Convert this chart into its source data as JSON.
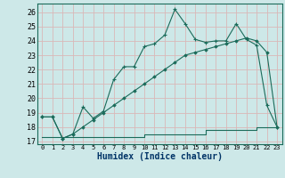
{
  "xlabel": "Humidex (Indice chaleur)",
  "background_color": "#cde8e8",
  "grid_color": "#b8d4d4",
  "line_color": "#1a6b5a",
  "xlim": [
    -0.5,
    23.5
  ],
  "ylim": [
    16.8,
    26.6
  ],
  "xticks": [
    0,
    1,
    2,
    3,
    4,
    5,
    6,
    7,
    8,
    9,
    10,
    11,
    12,
    13,
    14,
    15,
    16,
    17,
    18,
    19,
    20,
    21,
    22,
    23
  ],
  "yticks": [
    17,
    18,
    19,
    20,
    21,
    22,
    23,
    24,
    25,
    26
  ],
  "series1_x": [
    0,
    1,
    2,
    3,
    4,
    5,
    6,
    7,
    8,
    9,
    10,
    11,
    12,
    13,
    14,
    15,
    16,
    17,
    18,
    19,
    20,
    21,
    22,
    23
  ],
  "series1_y": [
    18.7,
    18.7,
    17.2,
    17.5,
    19.4,
    18.6,
    19.1,
    21.3,
    22.2,
    22.2,
    23.6,
    23.8,
    24.4,
    26.2,
    25.2,
    24.1,
    23.9,
    24.0,
    24.0,
    25.2,
    24.1,
    23.7,
    19.5,
    18.0
  ],
  "series2_x": [
    0,
    1,
    2,
    3,
    4,
    5,
    6,
    7,
    8,
    9,
    10,
    11,
    12,
    13,
    14,
    15,
    16,
    17,
    18,
    19,
    20,
    21,
    22,
    23
  ],
  "series2_y": [
    18.7,
    18.7,
    17.2,
    17.5,
    18.0,
    18.5,
    19.0,
    19.5,
    20.0,
    20.5,
    21.0,
    21.5,
    22.0,
    22.5,
    23.0,
    23.2,
    23.4,
    23.6,
    23.8,
    24.0,
    24.2,
    24.0,
    23.2,
    18.0
  ],
  "series3_x": [
    0,
    1,
    2,
    3,
    4,
    5,
    6,
    7,
    8,
    9,
    10,
    11,
    12,
    13,
    14,
    15,
    16,
    17,
    18,
    19,
    20,
    21,
    22,
    23
  ],
  "series3_y": [
    17.3,
    17.3,
    17.3,
    17.3,
    17.3,
    17.3,
    17.3,
    17.3,
    17.3,
    17.3,
    17.5,
    17.5,
    17.5,
    17.5,
    17.5,
    17.5,
    17.8,
    17.8,
    17.8,
    17.8,
    17.8,
    18.0,
    18.0,
    18.0
  ]
}
